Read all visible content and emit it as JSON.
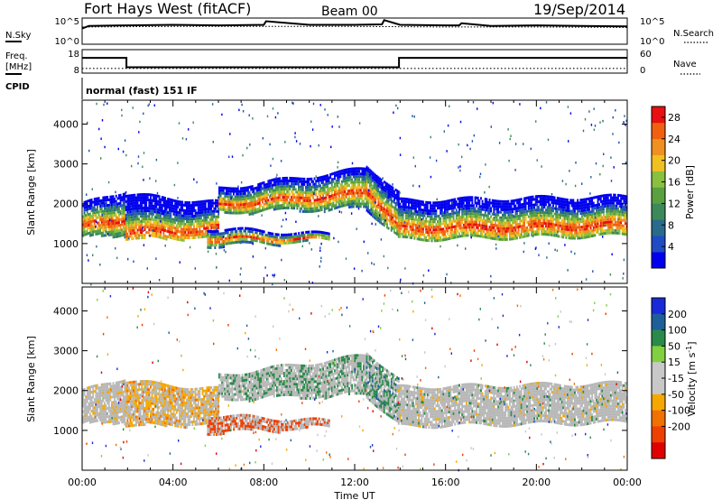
{
  "header": {
    "station": "Fort Hays West (fitACF)",
    "beam": "Beam 00",
    "date": "19/Sep/2014"
  },
  "noise_panel": {
    "left_label": "N.Sky",
    "left_ticks": [
      "10^5",
      "10^0"
    ],
    "right_label": "N.Search",
    "right_ticks": [
      "10^5",
      "10^0"
    ]
  },
  "freq_panel": {
    "left_label_1": "Freq.",
    "left_label_2": "[MHz]",
    "left_ticks": [
      "18",
      "8"
    ],
    "right_label": "Nave",
    "right_ticks": [
      "60",
      "0"
    ]
  },
  "cpid_panel": {
    "label": "CPID",
    "text": "normal (fast) 151 IF"
  },
  "colors": {
    "power_scale": [
      "#0000ee",
      "#1f4cc4",
      "#2a6a8a",
      "#3c8a5a",
      "#5aa040",
      "#88c040",
      "#f0c020",
      "#f09020",
      "#f06010",
      "#e81010"
    ],
    "velocity_scale": [
      "#1a2ad8",
      "#1e5f9a",
      "#2a8a4a",
      "#80d040",
      "#c8c8c8",
      "#c8c8c8",
      "#f5a800",
      "#f07000",
      "#ee4000",
      "#e00000"
    ],
    "ground_scatter": "#b8b8b8"
  },
  "chart_data": [
    {
      "type": "line",
      "name": "noise",
      "x_unit": "hours UT",
      "xlim": [
        0,
        24
      ],
      "series": [
        {
          "name": "N.Sky",
          "x": [
            0,
            0.3,
            2,
            4,
            6,
            8,
            8.1,
            10,
            12,
            13.2,
            13.3,
            14,
            16,
            16.6,
            16.7,
            18,
            20,
            22,
            24
          ],
          "y_log10": [
            3.0,
            3.5,
            3.6,
            3.7,
            3.6,
            3.7,
            4.4,
            3.7,
            3.7,
            3.8,
            4.6,
            3.7,
            3.6,
            3.6,
            4.0,
            3.5,
            3.6,
            3.5,
            3.4
          ]
        },
        {
          "name": "N.Search",
          "x": [
            0,
            4,
            8,
            12,
            16,
            20,
            24
          ],
          "y_log10": [
            3.3,
            3.4,
            3.4,
            3.4,
            3.3,
            3.3,
            3.2
          ]
        }
      ]
    },
    {
      "type": "line",
      "name": "frequency",
      "x_unit": "hours UT",
      "xlim": [
        0,
        24
      ],
      "ylim": [
        8,
        18
      ],
      "series": [
        {
          "name": "Freq.",
          "x": [
            0,
            1.95,
            1.95,
            13.95,
            13.95,
            24
          ],
          "y": [
            14.5,
            14.5,
            10.5,
            10.5,
            14.5,
            14.5
          ]
        },
        {
          "name": "Nave",
          "x": [
            0,
            24
          ],
          "y": [
            10,
            10
          ]
        }
      ]
    },
    {
      "type": "heatmap",
      "name": "power",
      "xlabel": "Time UT",
      "ylabel": "Slant Range [km]",
      "ylim": [
        0,
        4600
      ],
      "xlim": [
        0,
        24
      ],
      "x_ticks": [
        "00:00",
        "04:00",
        "08:00",
        "12:00",
        "16:00",
        "20:00",
        "00:00"
      ],
      "y_ticks": [
        1000,
        2000,
        3000,
        4000
      ],
      "colorbar": {
        "label": "Power [dB]",
        "ticks": [
          4,
          8,
          12,
          16,
          20,
          24,
          28
        ],
        "range": [
          0,
          30
        ]
      },
      "scatter_bands": [
        {
          "x": [
            0,
            1.9
          ],
          "r_low": [
            1150,
            1250
          ],
          "r_high": [
            2000,
            2350
          ],
          "peak": [
            1450,
            1650
          ]
        },
        {
          "x": [
            1.9,
            6.0
          ],
          "r_low": [
            1100,
            1200
          ],
          "r_high": [
            2250,
            2050
          ],
          "peak": [
            1300,
            1400
          ]
        },
        {
          "x": [
            6.0,
            12.5
          ],
          "r_low": [
            1800,
            1900
          ],
          "r_high": [
            2400,
            2900
          ],
          "peak": [
            2000,
            2300
          ]
        },
        {
          "x": [
            12.5,
            13.9
          ],
          "r_low": [
            1900,
            1200
          ],
          "r_high": [
            3000,
            2300
          ],
          "peak": [
            2400,
            1500
          ]
        },
        {
          "x": [
            13.9,
            24
          ],
          "r_low": [
            1100,
            1200
          ],
          "r_high": [
            2100,
            2200
          ],
          "peak": [
            1400,
            1500
          ]
        },
        {
          "x": [
            5.5,
            10.9
          ],
          "r_low": [
            950,
            1100
          ],
          "r_high": [
            1400,
            1250
          ],
          "peak": [
            1150,
            1150
          ]
        }
      ]
    },
    {
      "type": "heatmap",
      "name": "velocity",
      "xlabel": "Time UT",
      "ylabel": "Slant Range [km]",
      "ylim": [
        0,
        4600
      ],
      "xlim": [
        0,
        24
      ],
      "x_ticks": [
        "00:00",
        "04:00",
        "08:00",
        "12:00",
        "16:00",
        "20:00",
        "00:00"
      ],
      "y_ticks": [
        1000,
        2000,
        3000,
        4000
      ],
      "colorbar": {
        "label": "Velocity [m s^-1]",
        "ticks": [
          200,
          100,
          50,
          15,
          -15,
          -50,
          -100,
          -200
        ]
      },
      "scatter_bands": [
        {
          "x": [
            0,
            1.9
          ],
          "r_low": [
            1150,
            1250
          ],
          "r_high": [
            2000,
            2350
          ],
          "value": -5
        },
        {
          "x": [
            1.9,
            6.0
          ],
          "r_low": [
            1100,
            1200
          ],
          "r_high": [
            2250,
            2050
          ],
          "value": -40
        },
        {
          "x": [
            6.0,
            12.5
          ],
          "r_low": [
            1800,
            1900
          ],
          "r_high": [
            2400,
            2900
          ],
          "value": 20
        },
        {
          "x": [
            12.5,
            13.9
          ],
          "r_low": [
            1900,
            1200
          ],
          "r_high": [
            3000,
            2300
          ],
          "value": 40
        },
        {
          "x": [
            13.9,
            24
          ],
          "r_low": [
            1100,
            1200
          ],
          "r_high": [
            2100,
            2200
          ],
          "value": 0
        },
        {
          "x": [
            5.5,
            10.9
          ],
          "r_low": [
            950,
            1100
          ],
          "r_high": [
            1400,
            1250
          ],
          "value": -150
        }
      ]
    }
  ]
}
